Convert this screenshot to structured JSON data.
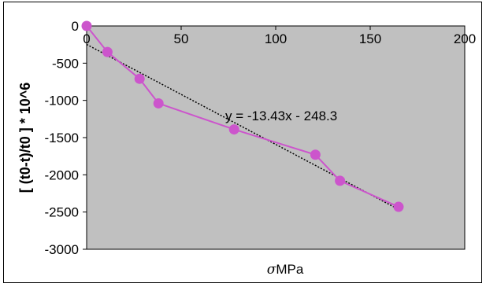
{
  "chart_data": {
    "type": "line",
    "title": "",
    "xlabel_symbol": "σ",
    "xlabel_unit": "MPa",
    "ylabel": "[ (t0-t)/t0 ]  * 10^6",
    "xlim": [
      0,
      200
    ],
    "ylim": [
      -3000,
      0
    ],
    "x_ticks": [
      "0",
      "50",
      "100",
      "150",
      "200"
    ],
    "y_ticks": [
      "0",
      "-500",
      "-1000",
      "-1500",
      "-2000",
      "-2500",
      "-3000"
    ],
    "grid": false,
    "legend": "none",
    "plot_background": "#c0c0c0",
    "series": [
      {
        "color": "#cc55cc",
        "marker": "circle",
        "x": [
          0,
          11,
          28,
          38,
          78,
          121,
          134,
          165
        ],
        "y": [
          0,
          -350,
          -710,
          -1040,
          -1390,
          -1730,
          -2080,
          -2430
        ]
      }
    ],
    "trendline": {
      "style": "dotted",
      "color": "#000000",
      "slope": -13.43,
      "intercept": -248.3,
      "x_range": [
        0,
        165
      ],
      "equation": "y = -13.43x - 248.3"
    }
  }
}
